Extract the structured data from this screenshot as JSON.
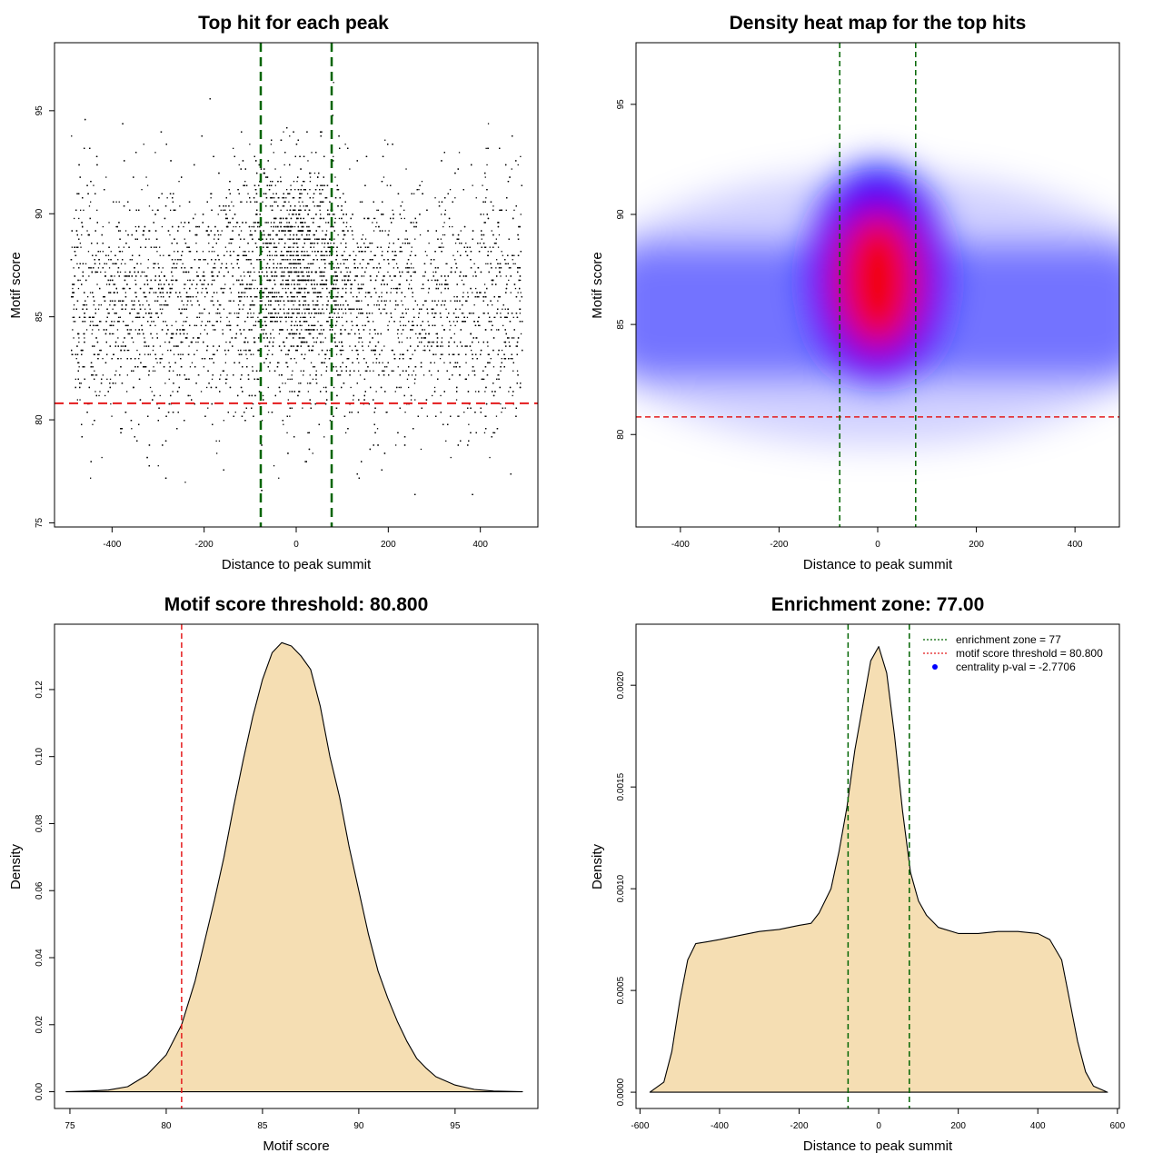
{
  "colors": {
    "threshold_red": "#e41a1c",
    "zone_green": "#006400",
    "density_fill": "#f5deb3",
    "heat_low": "#0000ff",
    "heat_high": "#ff0000",
    "points": "#000000"
  },
  "chart_data": [
    {
      "id": "scatter",
      "type": "scatter",
      "title": "Top hit for each peak",
      "xlabel": "Distance to peak summit",
      "ylabel": "Motif score",
      "xlim": [
        -525,
        525
      ],
      "ylim": [
        74.8,
        98.3
      ],
      "xticks": [
        -400,
        -200,
        0,
        200,
        400
      ],
      "yticks": [
        75,
        80,
        85,
        90,
        95
      ],
      "threshold": 80.8,
      "zone": [
        -77,
        77
      ],
      "point_count": 9000,
      "x_range": [
        -490,
        490
      ],
      "baseline_score": {
        "mean": 85.7,
        "sd": 3.0
      },
      "central_score": {
        "mean": 87.6,
        "sd": 2.6
      }
    },
    {
      "id": "heatmap",
      "type": "heatmap",
      "title": "Density heat map for the top hits",
      "xlabel": "Distance to peak summit",
      "ylabel": "Motif score",
      "xlim": [
        -490,
        490
      ],
      "ylim": [
        75.8,
        97.8
      ],
      "xticks": [
        -400,
        -200,
        0,
        200,
        400
      ],
      "yticks": [
        80,
        85,
        90,
        95
      ],
      "threshold": 80.8,
      "zone": [
        -77,
        77
      ],
      "peak": {
        "x": 0,
        "y": 87.0
      }
    },
    {
      "id": "score-density",
      "type": "area",
      "title": "Motif score threshold: 80.800",
      "xlabel": "Motif score",
      "ylabel": "Density",
      "xlim": [
        74.2,
        99.3
      ],
      "ylim": [
        -0.005,
        0.1395
      ],
      "xticks": [
        75,
        80,
        85,
        90,
        95
      ],
      "yticks": [
        0.0,
        0.02,
        0.04,
        0.06,
        0.08,
        0.1,
        0.12
      ],
      "ytick_labels": [
        "0.00",
        "0.02",
        "0.04",
        "0.06",
        "0.08",
        "0.10",
        "0.12"
      ],
      "threshold": 80.8,
      "x": [
        74.8,
        76.0,
        77.0,
        78.0,
        79.0,
        80.0,
        80.8,
        81.5,
        82.0,
        82.5,
        83.0,
        83.5,
        84.0,
        84.5,
        85.0,
        85.5,
        86.0,
        86.5,
        87.0,
        87.5,
        88.0,
        88.5,
        89.0,
        89.5,
        90.0,
        90.5,
        91.0,
        91.5,
        92.0,
        92.5,
        93.0,
        93.5,
        94.0,
        95.0,
        96.0,
        97.0,
        98.5
      ],
      "y": [
        0.0,
        0.0002,
        0.0005,
        0.0015,
        0.005,
        0.011,
        0.02,
        0.033,
        0.045,
        0.057,
        0.07,
        0.085,
        0.099,
        0.112,
        0.123,
        0.131,
        0.134,
        0.133,
        0.13,
        0.126,
        0.115,
        0.1,
        0.088,
        0.073,
        0.06,
        0.047,
        0.036,
        0.028,
        0.021,
        0.015,
        0.01,
        0.007,
        0.0045,
        0.002,
        0.0007,
        0.0002,
        0.0
      ]
    },
    {
      "id": "distance-density",
      "type": "area",
      "title": "Enrichment zone: 77.00",
      "xlabel": "Distance to peak summit",
      "ylabel": "Density",
      "xlim": [
        -610,
        605
      ],
      "ylim": [
        -8e-05,
        0.0023
      ],
      "xticks": [
        -600,
        -400,
        -200,
        0,
        200,
        400,
        600
      ],
      "yticks": [
        0.0,
        0.0005,
        0.001,
        0.0015,
        0.002
      ],
      "ytick_labels": [
        "0.0000",
        "0.0005",
        "0.0010",
        "0.0015",
        "0.0020"
      ],
      "zone": [
        -77,
        77
      ],
      "x": [
        -575,
        -540,
        -520,
        -500,
        -480,
        -460,
        -430,
        -400,
        -350,
        -300,
        -250,
        -200,
        -170,
        -150,
        -120,
        -100,
        -80,
        -60,
        -40,
        -20,
        0,
        20,
        40,
        60,
        80,
        100,
        120,
        150,
        200,
        250,
        300,
        350,
        400,
        430,
        460,
        480,
        500,
        520,
        540,
        575
      ],
      "y": [
        0.0,
        5e-05,
        0.0002,
        0.00045,
        0.00065,
        0.00073,
        0.00074,
        0.00075,
        0.00077,
        0.00079,
        0.0008,
        0.00082,
        0.00083,
        0.00088,
        0.001,
        0.00118,
        0.0014,
        0.00168,
        0.0019,
        0.00212,
        0.00219,
        0.00206,
        0.00175,
        0.00138,
        0.00108,
        0.00094,
        0.00087,
        0.00081,
        0.00078,
        0.00078,
        0.00079,
        0.00079,
        0.00078,
        0.00075,
        0.00065,
        0.00045,
        0.00025,
        0.0001,
        3e-05,
        0.0
      ],
      "legend": [
        {
          "label": "enrichment zone = 77",
          "style": "dotted",
          "color": "#006400"
        },
        {
          "label": "motif score threshold = 80.800",
          "style": "dotted",
          "color": "#e41a1c"
        },
        {
          "label": "centrality p-val = -2.7706",
          "style": "point",
          "color": "#0000ff"
        }
      ]
    }
  ]
}
